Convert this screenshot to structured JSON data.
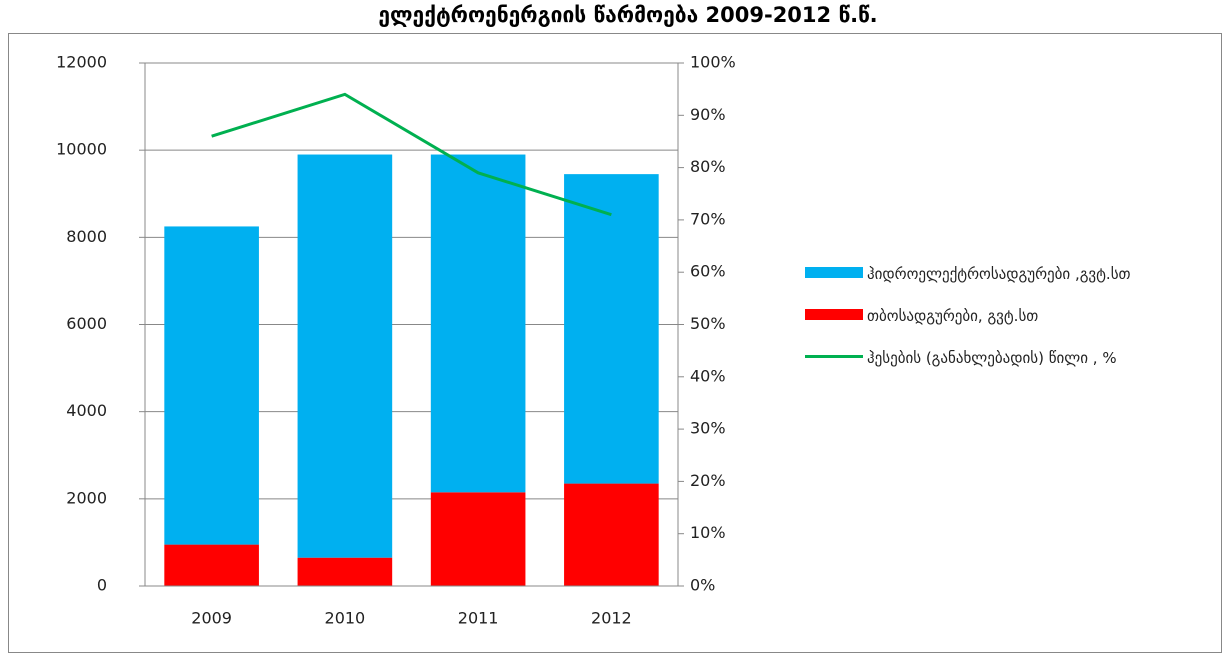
{
  "chart_data": {
    "type": "bar",
    "title": "ელექტროენერგიის წარმოება 2009-2012 წ.წ.",
    "categories": [
      "2009",
      "2010",
      "2011",
      "2012"
    ],
    "series": [
      {
        "name": "ჰიდროელექტროსადგურები ,გვტ.სთ",
        "color": "#00b0f0",
        "values": [
          7300,
          9250,
          7750,
          7100
        ]
      },
      {
        "name": "თბოსადგურები, გვტ.სთ",
        "color": "#ff0000",
        "values": [
          950,
          650,
          2150,
          2350
        ]
      },
      {
        "name": "ჰესების (განახლებადის) წილი , %",
        "color": "#00b050",
        "type": "line",
        "axis": "y2",
        "values": [
          86,
          94,
          79,
          71
        ]
      }
    ],
    "stacked": true,
    "ylim": [
      0,
      12000
    ],
    "yticks": [
      0,
      2000,
      4000,
      6000,
      8000,
      10000,
      12000
    ],
    "y2lim": [
      0,
      100
    ],
    "y2ticks": [
      {
        "value": 0,
        "label": "0%"
      },
      {
        "value": 10,
        "label": "10%"
      },
      {
        "value": 20,
        "label": "20%"
      },
      {
        "value": 30,
        "label": "30%"
      },
      {
        "value": 40,
        "label": "40%"
      },
      {
        "value": 50,
        "label": "50%"
      },
      {
        "value": 60,
        "label": "60%"
      },
      {
        "value": 70,
        "label": "70%"
      },
      {
        "value": 80,
        "label": "80%"
      },
      {
        "value": 90,
        "label": "90%"
      },
      {
        "value": 100,
        "label": "100%"
      }
    ],
    "grid": true,
    "legend": "right"
  }
}
